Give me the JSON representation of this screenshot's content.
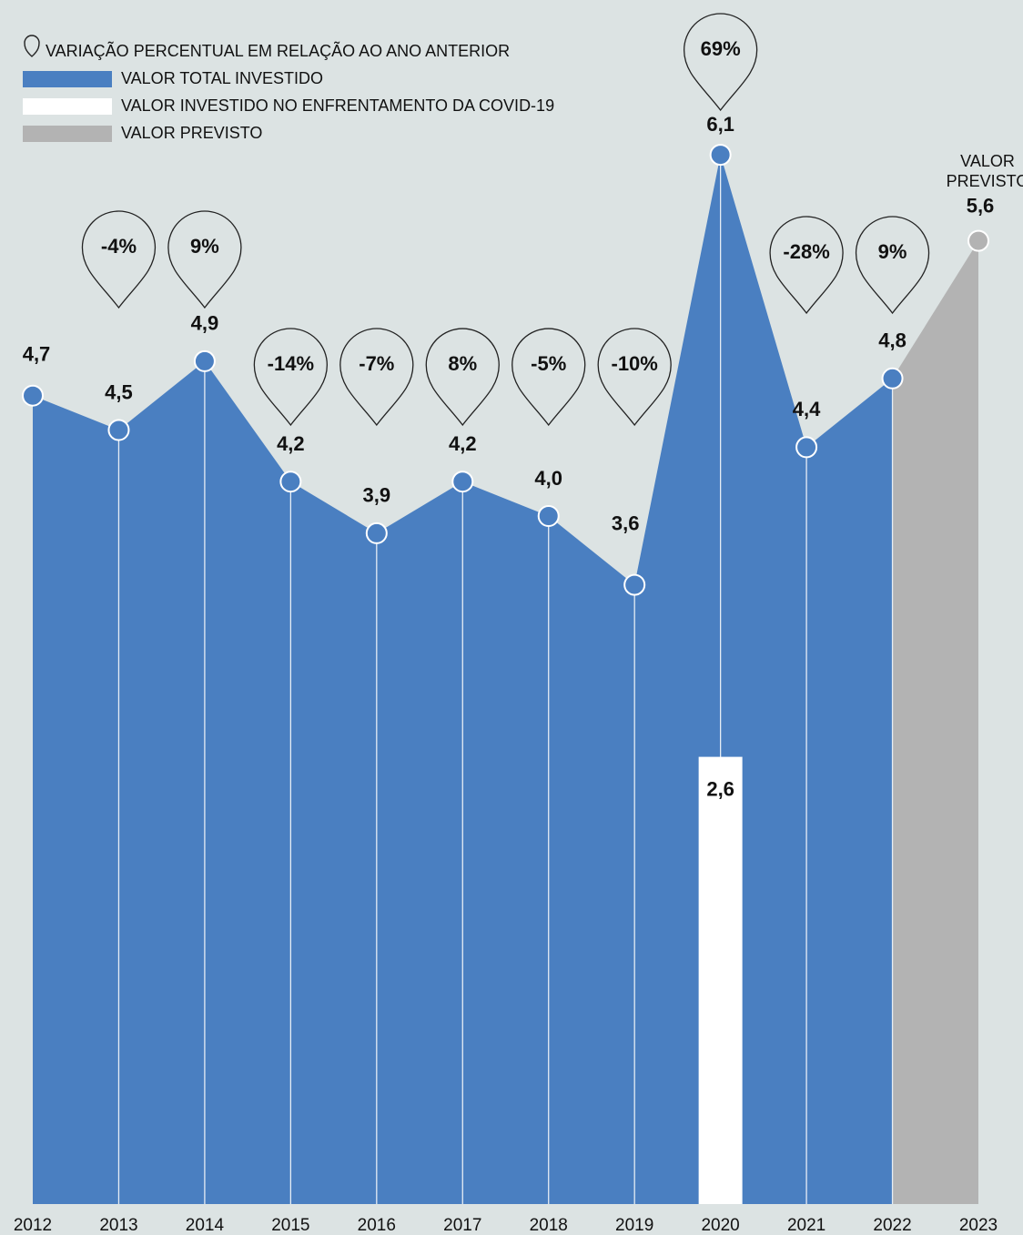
{
  "chart_data": {
    "type": "area",
    "categories": [
      "2012",
      "2013",
      "2014",
      "2015",
      "2016",
      "2017",
      "2018",
      "2019",
      "2020",
      "2021",
      "2022",
      "2023"
    ],
    "ylim": [
      0,
      7
    ],
    "change_legend": "VARIAÇÃO PERCENTUAL EM RELAÇÃO AO ANO ANTERIOR",
    "series": [
      {
        "name": "VALOR TOTAL INVESTIDO",
        "color": "#4a7fc1",
        "values": [
          4.7,
          4.5,
          4.9,
          4.2,
          3.9,
          4.2,
          4.0,
          3.6,
          6.1,
          4.4,
          4.8,
          null
        ],
        "value_labels": [
          "4,7",
          "4,5",
          "4,9",
          "4,2",
          "3,9",
          "4,2",
          "4,0",
          "3,6",
          "6,1",
          "4,4",
          "4,8",
          null
        ]
      },
      {
        "name": "VALOR INVESTIDO NO ENFRENTAMENTO DA COVID-19",
        "color": "#ffffff",
        "values": [
          null,
          null,
          null,
          null,
          null,
          null,
          null,
          null,
          2.6,
          null,
          null,
          null
        ],
        "value_labels": [
          null,
          null,
          null,
          null,
          null,
          null,
          null,
          null,
          "2,6",
          null,
          null,
          null
        ]
      },
      {
        "name": "VALOR PREVISTO",
        "color": "#b3b3b3",
        "values": [
          null,
          null,
          null,
          null,
          null,
          null,
          null,
          null,
          null,
          null,
          null,
          5.6
        ],
        "value_labels": [
          null,
          null,
          null,
          null,
          null,
          null,
          null,
          null,
          null,
          null,
          null,
          "5,6"
        ]
      }
    ],
    "changes": [
      null,
      -4,
      9,
      -14,
      -7,
      8,
      -5,
      -10,
      69,
      -28,
      9,
      null
    ],
    "change_labels": [
      null,
      "-4%",
      "9%",
      "-14%",
      "-7%",
      "8%",
      "-5%",
      "-10%",
      "69%",
      "-28%",
      "9%",
      null
    ],
    "annotation_lines": [
      "VALOR",
      "PREVISTO"
    ]
  }
}
